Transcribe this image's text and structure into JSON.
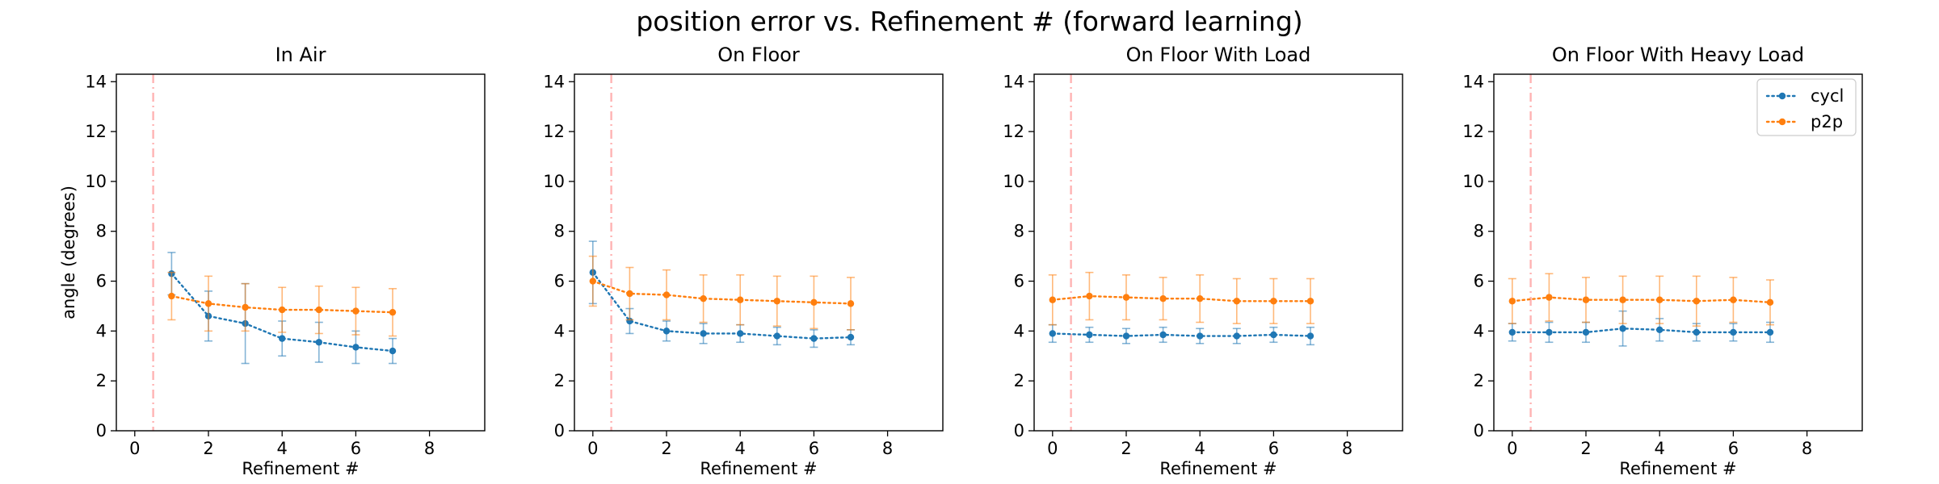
{
  "figure": {
    "title": "position error vs. Refinement # (forward learning)"
  },
  "chart_data": [
    {
      "type": "line",
      "title": "In Air",
      "xlabel": "Refinement #",
      "ylabel": "angle (degrees)",
      "xlim": [
        -0.5,
        9.5
      ],
      "ylim": [
        0,
        14.3
      ],
      "xticks": [
        0,
        2,
        4,
        6,
        8
      ],
      "yticks": [
        0,
        2,
        4,
        6,
        8,
        10,
        12,
        14
      ],
      "vline_x": 0.5,
      "vline_color": "#ffb3b3",
      "grid": false,
      "series": [
        {
          "name": "cycl",
          "color": "#1f77b4",
          "x": [
            1,
            2,
            3,
            4,
            5,
            6,
            7
          ],
          "values": [
            6.3,
            4.6,
            4.3,
            3.7,
            3.55,
            3.35,
            3.2
          ],
          "error": [
            0.85,
            1.0,
            1.6,
            0.7,
            0.8,
            0.65,
            0.5
          ]
        },
        {
          "name": "p2p",
          "color": "#ff7f0e",
          "x": [
            1,
            2,
            3,
            4,
            5,
            6,
            7
          ],
          "values": [
            5.4,
            5.1,
            4.95,
            4.85,
            4.85,
            4.8,
            4.75
          ],
          "error": [
            0.95,
            1.1,
            0.95,
            0.9,
            0.95,
            0.95,
            0.95
          ]
        }
      ]
    },
    {
      "type": "line",
      "title": "On Floor",
      "xlabel": "Refinement #",
      "ylabel": "",
      "xlim": [
        -0.5,
        9.5
      ],
      "ylim": [
        0,
        14.3
      ],
      "xticks": [
        0,
        2,
        4,
        6,
        8
      ],
      "yticks": [
        0,
        2,
        4,
        6,
        8,
        10,
        12,
        14
      ],
      "vline_x": 0.5,
      "vline_color": "#ffb3b3",
      "grid": false,
      "series": [
        {
          "name": "cycl",
          "color": "#1f77b4",
          "x": [
            0,
            1,
            2,
            3,
            4,
            5,
            6,
            7
          ],
          "values": [
            6.35,
            4.4,
            4.0,
            3.9,
            3.9,
            3.8,
            3.7,
            3.75
          ],
          "error": [
            1.25,
            0.5,
            0.4,
            0.4,
            0.35,
            0.35,
            0.35,
            0.3
          ]
        },
        {
          "name": "p2p",
          "color": "#ff7f0e",
          "x": [
            0,
            1,
            2,
            3,
            4,
            5,
            6,
            7
          ],
          "values": [
            6.0,
            5.5,
            5.45,
            5.3,
            5.25,
            5.2,
            5.15,
            5.1
          ],
          "error": [
            1.0,
            1.05,
            1.0,
            0.95,
            1.0,
            1.0,
            1.05,
            1.05
          ]
        }
      ]
    },
    {
      "type": "line",
      "title": "On Floor With Load",
      "xlabel": "Refinement #",
      "ylabel": "",
      "xlim": [
        -0.5,
        9.5
      ],
      "ylim": [
        0,
        14.3
      ],
      "xticks": [
        0,
        2,
        4,
        6,
        8
      ],
      "yticks": [
        0,
        2,
        4,
        6,
        8,
        10,
        12,
        14
      ],
      "vline_x": 0.5,
      "vline_color": "#ffb3b3",
      "grid": false,
      "series": [
        {
          "name": "cycl",
          "color": "#1f77b4",
          "x": [
            0,
            1,
            2,
            3,
            4,
            5,
            6,
            7
          ],
          "values": [
            3.9,
            3.85,
            3.8,
            3.85,
            3.8,
            3.8,
            3.85,
            3.8
          ],
          "error": [
            0.35,
            0.3,
            0.3,
            0.3,
            0.3,
            0.3,
            0.3,
            0.35
          ]
        },
        {
          "name": "p2p",
          "color": "#ff7f0e",
          "x": [
            0,
            1,
            2,
            3,
            4,
            5,
            6,
            7
          ],
          "values": [
            5.25,
            5.4,
            5.35,
            5.3,
            5.3,
            5.2,
            5.2,
            5.2
          ],
          "error": [
            1.0,
            0.95,
            0.9,
            0.85,
            0.95,
            0.9,
            0.9,
            0.9
          ]
        }
      ]
    },
    {
      "type": "line",
      "title": "On Floor With Heavy Load",
      "xlabel": "Refinement #",
      "ylabel": "",
      "xlim": [
        -0.5,
        9.5
      ],
      "ylim": [
        0,
        14.3
      ],
      "xticks": [
        0,
        2,
        4,
        6,
        8
      ],
      "yticks": [
        0,
        2,
        4,
        6,
        8,
        10,
        12,
        14
      ],
      "vline_x": 0.5,
      "vline_color": "#ffb3b3",
      "grid": false,
      "legend": "top-right",
      "series": [
        {
          "name": "cycl",
          "color": "#1f77b4",
          "x": [
            0,
            1,
            2,
            3,
            4,
            5,
            6,
            7
          ],
          "values": [
            3.95,
            3.95,
            3.95,
            4.1,
            4.05,
            3.95,
            3.95,
            3.95
          ],
          "error": [
            0.35,
            0.4,
            0.4,
            0.7,
            0.45,
            0.35,
            0.35,
            0.4
          ]
        },
        {
          "name": "p2p",
          "color": "#ff7f0e",
          "x": [
            0,
            1,
            2,
            3,
            4,
            5,
            6,
            7
          ],
          "values": [
            5.2,
            5.35,
            5.25,
            5.25,
            5.25,
            5.2,
            5.25,
            5.15
          ],
          "error": [
            0.9,
            0.95,
            0.9,
            0.95,
            0.95,
            1.0,
            0.9,
            0.9
          ]
        }
      ]
    }
  ]
}
